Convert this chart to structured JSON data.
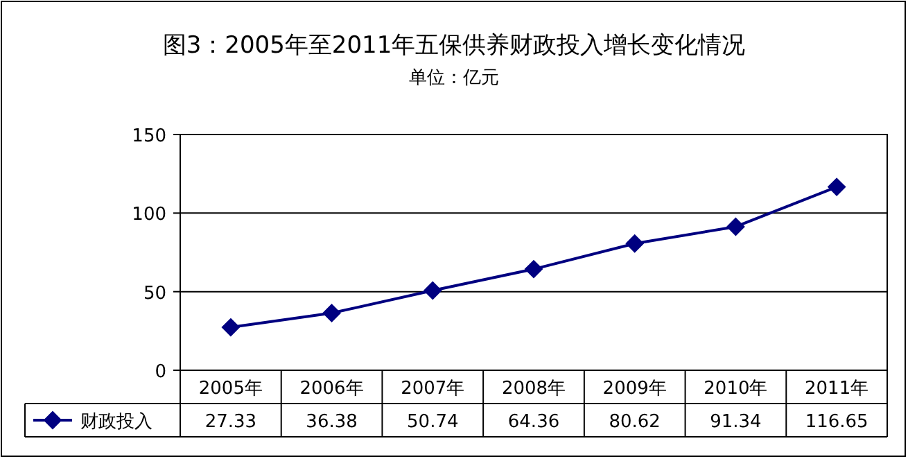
{
  "chart_data": {
    "type": "line",
    "title": "图3：2005年至2011年五保供养财政投入增长变化情况",
    "subtitle": "单位：亿元",
    "categories": [
      "2005年",
      "2006年",
      "2007年",
      "2008年",
      "2009年",
      "2010年",
      "2011年"
    ],
    "series": [
      {
        "name": "财政投入",
        "color": "#000080",
        "values": [
          27.33,
          36.38,
          50.74,
          64.36,
          80.62,
          91.34,
          116.65
        ]
      }
    ],
    "ylim": [
      0,
      150
    ],
    "yticks": [
      0,
      50,
      100,
      150
    ],
    "grid": "y",
    "marker": "diamond",
    "line_style": "solid",
    "data_labels": true,
    "legend": "bottom left"
  }
}
